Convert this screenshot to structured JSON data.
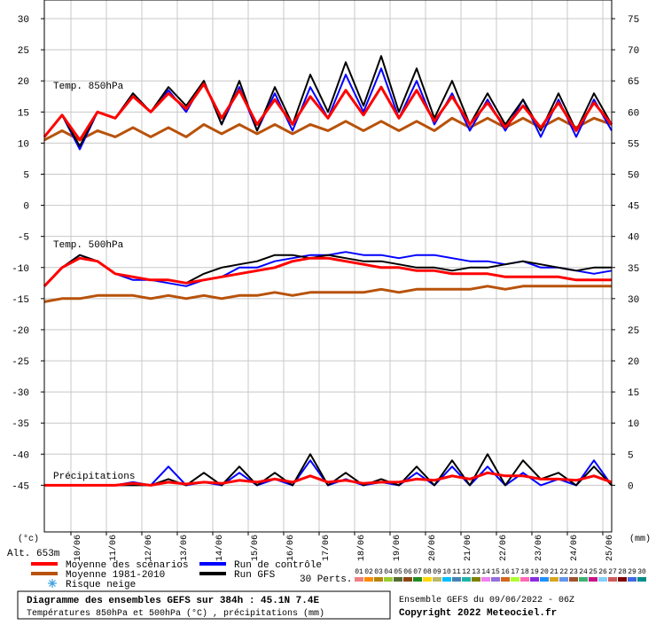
{
  "chart_data": {
    "type": "line",
    "title": "Diagramme des ensembles GEFS sur 384h : 45.1N 7.4E",
    "subtitle": "Températures 850hPa et 500hPa (°C) , précipitations (mm)",
    "run_label": "Ensemble GEFS du 09/06/2022 - 06Z",
    "copyright": "Copyright 2022 Meteociel.fr",
    "altitude": "Alt. 653m",
    "y_unit": "(°c)",
    "y2_unit": "(mm)",
    "panel_labels": [
      "Temp. 850hPa",
      "Temp. 500hPa",
      "Précipitations"
    ],
    "snow_label": "Risque neige",
    "perts_label": "30 Perts.",
    "perts": [
      {
        "label": "01",
        "color": "#f08080"
      },
      {
        "label": "02",
        "color": "#ff8c00"
      },
      {
        "label": "03",
        "color": "#b8860b"
      },
      {
        "label": "04",
        "color": "#9acd32"
      },
      {
        "label": "05",
        "color": "#556b2f"
      },
      {
        "label": "06",
        "color": "#8b4513"
      },
      {
        "label": "07",
        "color": "#228b22"
      },
      {
        "label": "08",
        "color": "#ffd700"
      },
      {
        "label": "09",
        "color": "#bdb76b"
      },
      {
        "label": "10",
        "color": "#00bfff"
      },
      {
        "label": "11",
        "color": "#4682b4"
      },
      {
        "label": "12",
        "color": "#20b2aa"
      },
      {
        "label": "13",
        "color": "#808000"
      },
      {
        "label": "14",
        "color": "#ee82ee"
      },
      {
        "label": "15",
        "color": "#9370db"
      },
      {
        "label": "16",
        "color": "#d2691e"
      },
      {
        "label": "17",
        "color": "#adff2f"
      },
      {
        "label": "18",
        "color": "#ff69b4"
      },
      {
        "label": "19",
        "color": "#8a2be2"
      },
      {
        "label": "20",
        "color": "#1e90ff"
      },
      {
        "label": "21",
        "color": "#daa520"
      },
      {
        "label": "22",
        "color": "#6495ed"
      },
      {
        "label": "23",
        "color": "#a0522d"
      },
      {
        "label": "24",
        "color": "#3cb371"
      },
      {
        "label": "25",
        "color": "#c71585"
      },
      {
        "label": "26",
        "color": "#87cefa"
      },
      {
        "label": "27",
        "color": "#cd5c5c"
      },
      {
        "label": "28",
        "color": "#800000"
      },
      {
        "label": "29",
        "color": "#4169e1"
      },
      {
        "label": "30",
        "color": "#008b8b"
      }
    ],
    "xlim": [
      0,
      384
    ],
    "xticks": [
      {
        "value": 18,
        "label": "10/06"
      },
      {
        "value": 42,
        "label": "11/06"
      },
      {
        "value": 66,
        "label": "12/06"
      },
      {
        "value": 90,
        "label": "13/06"
      },
      {
        "value": 114,
        "label": "14/06"
      },
      {
        "value": 138,
        "label": "15/06"
      },
      {
        "value": 162,
        "label": "16/06"
      },
      {
        "value": 186,
        "label": "17/06"
      },
      {
        "value": 210,
        "label": "18/06"
      },
      {
        "value": 234,
        "label": "19/06"
      },
      {
        "value": 258,
        "label": "20/06"
      },
      {
        "value": 282,
        "label": "21/06"
      },
      {
        "value": 306,
        "label": "22/06"
      },
      {
        "value": 330,
        "label": "23/06"
      },
      {
        "value": 354,
        "label": "24/06"
      },
      {
        "value": 378,
        "label": "25/06"
      }
    ],
    "ylim": [
      -52.5,
      33
    ],
    "yticks": [
      30,
      25,
      20,
      15,
      10,
      5,
      0,
      -5,
      -10,
      -15,
      -20,
      -25,
      -30,
      -35,
      -40,
      -45
    ],
    "y2lim": [
      -7.5,
      78
    ],
    "y2ticks": [
      75,
      70,
      65,
      60,
      55,
      50,
      45,
      40,
      35,
      30,
      25,
      20,
      15,
      10,
      5,
      0
    ],
    "grid": true,
    "x": [
      0,
      12,
      24,
      36,
      48,
      60,
      72,
      84,
      96,
      108,
      120,
      132,
      144,
      156,
      168,
      180,
      192,
      204,
      216,
      228,
      240,
      252,
      264,
      276,
      288,
      300,
      312,
      324,
      336,
      348,
      360,
      372,
      384
    ],
    "series": [
      {
        "name": "Moyenne des scénarios",
        "color": "#ff0000",
        "t850": [
          11,
          14.5,
          10.5,
          15,
          14,
          17.5,
          15,
          18,
          15.5,
          19.5,
          14,
          18.5,
          13,
          17,
          13,
          17.5,
          14,
          18.5,
          14.5,
          19,
          14,
          18.5,
          13.5,
          17.5,
          13,
          16.5,
          12.5,
          16,
          12.5,
          16.5,
          12,
          16.5,
          13
        ],
        "t500": [
          -13,
          -10,
          -8.5,
          -9,
          -11,
          -11.5,
          -12,
          -12,
          -12.5,
          -12,
          -11.5,
          -11,
          -10.5,
          -10,
          -9,
          -8.5,
          -8.5,
          -9,
          -9.5,
          -10,
          -10,
          -10.5,
          -10.5,
          -11,
          -11,
          -11,
          -11.5,
          -11.5,
          -11.5,
          -11.5,
          -12,
          -12,
          -12
        ],
        "precip": [
          0,
          0,
          0,
          0,
          0,
          0.3,
          0,
          0.5,
          0.2,
          0.5,
          0.3,
          0.8,
          0.5,
          1,
          0.5,
          1.5,
          0.5,
          0.8,
          0.3,
          0.5,
          0.5,
          1,
          0.8,
          1.5,
          1,
          2,
          1.5,
          1.5,
          1,
          1,
          0.8,
          1.5,
          0.5
        ]
      },
      {
        "name": "Moyenne 1981-2010",
        "color": "#b8520a",
        "t850": [
          10.5,
          12,
          10.5,
          12,
          11,
          12.5,
          11,
          12.5,
          11,
          13,
          11.5,
          13,
          11.5,
          13,
          11.5,
          13,
          12,
          13.5,
          12,
          13.5,
          12,
          13.5,
          12,
          14,
          12.5,
          14,
          12.5,
          14,
          12.5,
          14,
          12.5,
          14,
          13
        ],
        "t500": [
          -15.5,
          -15,
          -15,
          -14.5,
          -14.5,
          -14.5,
          -15,
          -14.5,
          -15,
          -14.5,
          -15,
          -14.5,
          -14.5,
          -14,
          -14.5,
          -14,
          -14,
          -14,
          -14,
          -13.5,
          -14,
          -13.5,
          -13.5,
          -13.5,
          -13.5,
          -13,
          -13.5,
          -13,
          -13,
          -13,
          -13,
          -13,
          -13
        ]
      },
      {
        "name": "Run de contrôle",
        "color": "#0000ff",
        "t850": [
          11,
          14.5,
          9,
          15,
          14,
          18,
          15,
          18.5,
          15,
          20,
          13,
          19,
          12,
          18,
          12,
          19,
          14,
          21,
          15,
          22,
          14,
          20,
          13,
          18,
          12,
          17,
          12,
          17,
          11,
          17,
          11,
          17,
          12
        ],
        "t500": [
          -13,
          -10,
          -8,
          -9,
          -11,
          -12,
          -12,
          -12.5,
          -13,
          -12,
          -11.5,
          -10,
          -10,
          -9,
          -8.5,
          -8,
          -8,
          -7.5,
          -8,
          -8,
          -8.5,
          -8,
          -8,
          -8.5,
          -9,
          -9,
          -9.5,
          -9,
          -10,
          -10,
          -10.5,
          -11,
          -10.5
        ],
        "precip": [
          0,
          0,
          0,
          0,
          0,
          0.5,
          0,
          3,
          0,
          0.5,
          0,
          2,
          0,
          1,
          0,
          4,
          0,
          1,
          0,
          0.5,
          0,
          2,
          0,
          3,
          0,
          3,
          0,
          2,
          0,
          1,
          0,
          4,
          0
        ]
      },
      {
        "name": "Run GFS",
        "color": "#000000",
        "t850": [
          11,
          14.5,
          9.5,
          15,
          14,
          18,
          15,
          19,
          16,
          20,
          13,
          20,
          12,
          19,
          13,
          21,
          15,
          23,
          16,
          24,
          15,
          22,
          14,
          20,
          13,
          18,
          13,
          17,
          12,
          18,
          12,
          18,
          13
        ],
        "t500": [
          -13,
          -10,
          -8,
          -9,
          -11,
          -11.5,
          -12,
          -12,
          -12.5,
          -11,
          -10,
          -9.5,
          -9,
          -8,
          -8,
          -8.5,
          -8,
          -8.5,
          -9,
          -9,
          -9.5,
          -10,
          -10,
          -10.5,
          -10,
          -10,
          -9.5,
          -9,
          -9.5,
          -10,
          -10.5,
          -10,
          -10
        ],
        "precip": [
          0,
          0,
          0,
          0,
          0,
          0,
          0,
          1,
          0,
          2,
          0,
          3,
          0,
          2,
          0,
          5,
          0,
          2,
          0,
          1,
          0,
          3,
          0,
          4,
          0,
          5,
          0,
          4,
          1,
          2,
          0,
          3,
          0
        ]
      }
    ]
  }
}
